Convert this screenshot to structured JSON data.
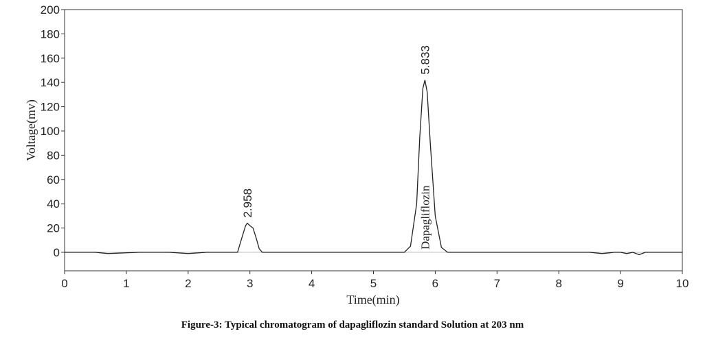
{
  "caption": "Figure-3: Typical chromatogram of dapagliflozin standard Solution at 203 nm",
  "chart_data": {
    "type": "line",
    "xlabel": "Time(min)",
    "ylabel": "Voltage(mv)",
    "xlim": [
      0,
      10
    ],
    "ylim": [
      -10,
      200
    ],
    "xticks": [
      0,
      1,
      2,
      3,
      4,
      5,
      6,
      7,
      8,
      9,
      10
    ],
    "yticks": [
      0,
      20,
      40,
      60,
      80,
      100,
      120,
      140,
      160,
      180,
      200
    ],
    "grid": false,
    "peaks": [
      {
        "retention_time": 2.958,
        "label": "2.958",
        "height": 24
      },
      {
        "retention_time": 5.833,
        "label": "5.833",
        "height": 142,
        "compound": "Dapagliflozin"
      }
    ],
    "series": [
      {
        "x": [
          0,
          0.5,
          0.7,
          1.2,
          1.7,
          2.0,
          2.3,
          2.8,
          2.87,
          2.93,
          2.958,
          3.0,
          3.05,
          3.1,
          3.15,
          3.2,
          3.5,
          4.0,
          4.5,
          5.0,
          5.5,
          5.6,
          5.7,
          5.75,
          5.8,
          5.833,
          5.87,
          5.92,
          6.0,
          6.1,
          6.2,
          6.5,
          7.0,
          7.5,
          8.0,
          8.5,
          8.7,
          8.9,
          9.0,
          9.1,
          9.2,
          9.3,
          9.4,
          9.6,
          10.0
        ],
        "y": [
          0,
          0,
          -1,
          0,
          0,
          -1,
          0,
          0,
          12,
          22,
          24,
          22,
          20,
          12,
          3,
          0,
          0,
          0,
          0,
          0,
          0,
          5,
          40,
          95,
          135,
          142,
          132,
          90,
          30,
          4,
          0,
          0,
          0,
          0,
          0,
          0,
          -1,
          0,
          0,
          -1,
          0,
          -2,
          0,
          0,
          0
        ]
      }
    ]
  }
}
